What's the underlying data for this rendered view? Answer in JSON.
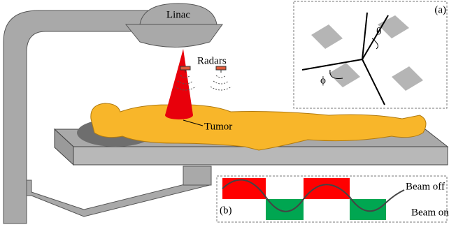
{
  "labels": {
    "linac": "Linac",
    "radars": "Radars",
    "tumor": "Tumor"
  },
  "inset_a": {
    "tag": "(a)",
    "theta": "θ",
    "phi": "ϕ"
  },
  "inset_b": {
    "tag": "(b)",
    "beam_off": "Beam off",
    "beam_on": "Beam on"
  }
}
